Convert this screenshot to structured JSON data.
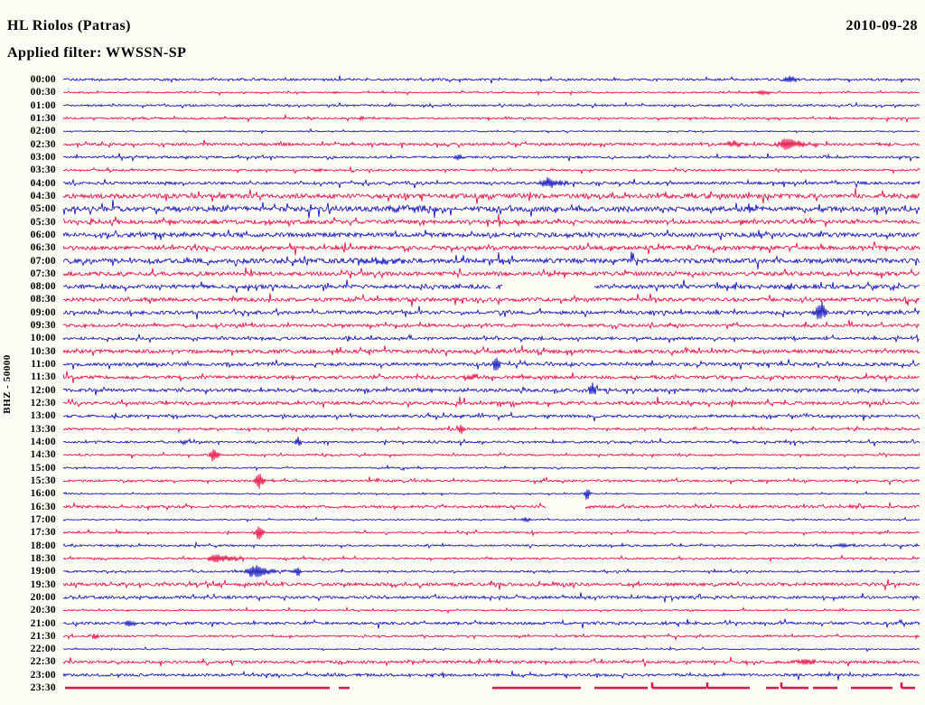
{
  "chart_data": {
    "type": "line",
    "subtype": "helicorder-day-plot",
    "title": "HL Riolos (Patras)",
    "subtitle": "Applied filter: WWSSN-SP",
    "date": "2010-09-28",
    "ylabel": "BHZ - 50000",
    "x_axis": "30 minutes per trace row, 48 rows covering 24 hours",
    "legend": "rows alternate blue (hh:00) and red (hh:30)",
    "palette": {
      "blue": "#1818c0",
      "red": "#e8114b",
      "background": "#fcfcf5",
      "text": "#000000"
    },
    "rows": [
      {
        "time": "00:00",
        "color": "blue",
        "noise": 1.1,
        "events": [
          [
            875,
            3.5,
            7
          ]
        ]
      },
      {
        "time": "00:30",
        "color": "red",
        "noise": 0.7,
        "events": [
          [
            845,
            2.2,
            10
          ],
          [
            370,
            1.5,
            3
          ]
        ]
      },
      {
        "time": "01:00",
        "color": "blue",
        "noise": 1.0,
        "events": []
      },
      {
        "time": "01:30",
        "color": "red",
        "noise": 0.9,
        "events": [
          [
            400,
            2,
            3
          ]
        ]
      },
      {
        "time": "02:00",
        "color": "blue",
        "noise": 0.6,
        "events": []
      },
      {
        "time": "02:30",
        "color": "red",
        "noise": 1.4,
        "events": [
          [
            812,
            3.5,
            8
          ],
          [
            871,
            7,
            8
          ],
          [
            888,
            2.5,
            14
          ]
        ]
      },
      {
        "time": "03:00",
        "color": "blue",
        "noise": 1.1,
        "events": [
          [
            508,
            2.5,
            5
          ]
        ]
      },
      {
        "time": "03:30",
        "color": "red",
        "noise": 1.0,
        "events": [
          [
            352,
            2,
            5
          ]
        ]
      },
      {
        "time": "04:00",
        "color": "blue",
        "noise": 1.4,
        "events": [
          [
            607,
            5.5,
            8
          ],
          [
            620,
            2,
            14
          ]
        ]
      },
      {
        "time": "04:30",
        "color": "red",
        "noise": 2.4,
        "events": []
      },
      {
        "time": "05:00",
        "color": "blue",
        "noise": 2.6,
        "events": [
          [
            460,
            2.5,
            30
          ]
        ]
      },
      {
        "time": "05:30",
        "color": "red",
        "noise": 2.1,
        "events": []
      },
      {
        "time": "06:00",
        "color": "blue",
        "noise": 2.3,
        "events": []
      },
      {
        "time": "06:30",
        "color": "red",
        "noise": 2.1,
        "events": []
      },
      {
        "time": "07:00",
        "color": "blue",
        "noise": 2.5,
        "events": [
          [
            420,
            2.5,
            25
          ]
        ]
      },
      {
        "time": "07:30",
        "color": "red",
        "noise": 2.1,
        "events": []
      },
      {
        "time": "08:00",
        "color": "blue",
        "noise": 2.1,
        "events": [
          [
            873,
            4,
            4
          ]
        ],
        "gaps": [
          [
            543,
            549
          ],
          [
            556,
            658
          ]
        ]
      },
      {
        "time": "08:30",
        "color": "red",
        "noise": 1.9,
        "events": []
      },
      {
        "time": "09:00",
        "color": "blue",
        "noise": 1.9,
        "events": [
          [
            908,
            11,
            5
          ]
        ]
      },
      {
        "time": "09:30",
        "color": "red",
        "noise": 1.5,
        "events": []
      },
      {
        "time": "10:00",
        "color": "blue",
        "noise": 1.4,
        "events": []
      },
      {
        "time": "10:30",
        "color": "red",
        "noise": 1.9,
        "events": []
      },
      {
        "time": "11:00",
        "color": "blue",
        "noise": 1.7,
        "events": [
          [
            549,
            8,
            4
          ]
        ]
      },
      {
        "time": "11:30",
        "color": "red",
        "noise": 1.7,
        "events": [
          [
            524,
            3.5,
            8
          ]
        ]
      },
      {
        "time": "12:00",
        "color": "blue",
        "noise": 1.7,
        "events": [
          [
            656,
            7,
            4
          ]
        ]
      },
      {
        "time": "12:30",
        "color": "red",
        "noise": 1.7,
        "events": []
      },
      {
        "time": "13:00",
        "color": "blue",
        "noise": 1.4,
        "events": []
      },
      {
        "time": "13:30",
        "color": "red",
        "noise": 1.1,
        "events": [
          [
            510,
            6,
            3
          ]
        ]
      },
      {
        "time": "14:00",
        "color": "blue",
        "noise": 1.1,
        "events": [
          [
            330,
            6,
            3
          ],
          [
            205,
            2,
            6
          ]
        ]
      },
      {
        "time": "14:30",
        "color": "red",
        "noise": 0.9,
        "events": [
          [
            237,
            9,
            4
          ]
        ]
      },
      {
        "time": "15:00",
        "color": "blue",
        "noise": 0.7,
        "events": []
      },
      {
        "time": "15:30",
        "color": "red",
        "noise": 1.1,
        "events": [
          [
            287,
            9,
            4
          ]
        ]
      },
      {
        "time": "16:00",
        "color": "blue",
        "noise": 0.6,
        "events": [
          [
            650,
            7,
            3
          ]
        ]
      },
      {
        "time": "16:30",
        "color": "red",
        "noise": 1.3,
        "events": [
          [
            656,
            2.2,
            8
          ]
        ],
        "gaps": [
          [
            604,
            648
          ]
        ]
      },
      {
        "time": "17:00",
        "color": "blue",
        "noise": 0.6,
        "events": [
          [
            582,
            2.2,
            5
          ]
        ]
      },
      {
        "time": "17:30",
        "color": "red",
        "noise": 0.8,
        "events": [
          [
            287,
            10,
            4
          ]
        ]
      },
      {
        "time": "18:00",
        "color": "blue",
        "noise": 0.9,
        "events": [
          [
            933,
            2,
            10
          ]
        ]
      },
      {
        "time": "18:30",
        "color": "red",
        "noise": 0.9,
        "events": [
          [
            238,
            4,
            8
          ],
          [
            254,
            2.5,
            16
          ]
        ]
      },
      {
        "time": "19:00",
        "color": "blue",
        "noise": 0.9,
        "events": [
          [
            283,
            6.5,
            9
          ],
          [
            298,
            2.5,
            16
          ],
          [
            330,
            5,
            3
          ]
        ]
      },
      {
        "time": "19:30",
        "color": "red",
        "noise": 1.7,
        "events": []
      },
      {
        "time": "20:00",
        "color": "blue",
        "noise": 1.4,
        "events": []
      },
      {
        "time": "20:30",
        "color": "red",
        "noise": 0.7,
        "events": []
      },
      {
        "time": "21:00",
        "color": "blue",
        "noise": 1.4,
        "events": [
          [
            145,
            2.5,
            6
          ]
        ]
      },
      {
        "time": "21:30",
        "color": "red",
        "noise": 0.9,
        "events": [
          [
            105,
            3.5,
            4
          ]
        ]
      },
      {
        "time": "22:00",
        "color": "blue",
        "noise": 0.6,
        "events": []
      },
      {
        "time": "22:30",
        "color": "red",
        "noise": 1.4,
        "events": [
          [
            893,
            3.5,
            10
          ]
        ]
      },
      {
        "time": "23:00",
        "color": "blue",
        "noise": 1.4,
        "events": []
      },
      {
        "time": "23:30",
        "color": "red",
        "noise": 0.2,
        "events": [],
        "segments": [
          [
            72,
            365,
            0
          ],
          [
            375,
            387,
            0
          ],
          [
            545,
            643,
            0
          ],
          [
            658,
            717,
            0
          ],
          [
            722,
            782,
            1
          ],
          [
            783,
            830,
            1
          ],
          [
            848,
            862,
            0
          ],
          [
            865,
            895,
            1
          ],
          [
            900,
            927,
            0
          ],
          [
            942,
            988,
            0
          ],
          [
            998,
            1013,
            1
          ]
        ]
      }
    ]
  }
}
